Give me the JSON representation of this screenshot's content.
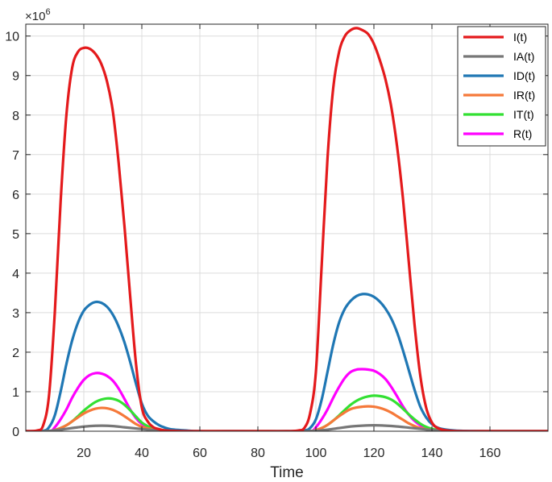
{
  "chart_data": {
    "type": "line",
    "title": "",
    "xlabel": "Time",
    "ylabel": "",
    "xlim": [
      0,
      180
    ],
    "ylim": [
      0,
      10.3
    ],
    "y_multiplier": 1000000,
    "y_multiplier_label": "×10",
    "y_multiplier_exponent": "6",
    "xticks": [
      20,
      40,
      60,
      80,
      100,
      120,
      140,
      160
    ],
    "yticks": [
      0,
      1,
      2,
      3,
      4,
      5,
      6,
      7,
      8,
      9,
      10
    ],
    "grid": true,
    "legend_position": "top-right",
    "series": [
      {
        "name": "I(t)",
        "color": "#e41a1c",
        "x": [
          0,
          4,
          6,
          8,
          10,
          12,
          14,
          16,
          18,
          20,
          22,
          24,
          26,
          28,
          30,
          32,
          34,
          36,
          38,
          40,
          42,
          44,
          46,
          48,
          50,
          55,
          60,
          70,
          80,
          90,
          94,
          96,
          98,
          100,
          102,
          104,
          106,
          108,
          110,
          112,
          114,
          116,
          118,
          120,
          122,
          124,
          126,
          128,
          130,
          132,
          134,
          136,
          138,
          140,
          142,
          145,
          150,
          160,
          170,
          180
        ],
        "y": [
          0,
          0.02,
          0.15,
          0.9,
          3.0,
          5.8,
          8.0,
          9.2,
          9.6,
          9.7,
          9.68,
          9.55,
          9.3,
          8.85,
          8.1,
          6.8,
          5.2,
          3.4,
          1.7,
          0.6,
          0.25,
          0.1,
          0.05,
          0.02,
          0.01,
          0,
          0,
          0,
          0,
          0,
          0.02,
          0.08,
          0.45,
          1.5,
          4.2,
          6.9,
          8.7,
          9.6,
          10.0,
          10.15,
          10.2,
          10.15,
          10.05,
          9.8,
          9.4,
          8.9,
          8.2,
          7.2,
          5.9,
          4.3,
          2.7,
          1.4,
          0.6,
          0.22,
          0.08,
          0.02,
          0,
          0,
          0,
          0
        ]
      },
      {
        "name": "IA(t)",
        "color": "#777777",
        "x": [
          0,
          6,
          10,
          14,
          18,
          22,
          26,
          30,
          34,
          38,
          42,
          46,
          50,
          55,
          60,
          90,
          96,
          100,
          104,
          108,
          112,
          116,
          120,
          124,
          128,
          132,
          136,
          140,
          144,
          148,
          155,
          180
        ],
        "y": [
          0,
          0,
          0.02,
          0.06,
          0.1,
          0.13,
          0.14,
          0.13,
          0.1,
          0.07,
          0.04,
          0.02,
          0.01,
          0,
          0,
          0,
          0,
          0.01,
          0.04,
          0.08,
          0.12,
          0.14,
          0.15,
          0.14,
          0.12,
          0.09,
          0.06,
          0.03,
          0.01,
          0,
          0,
          0
        ]
      },
      {
        "name": "ID(t)",
        "color": "#1f77b4",
        "x": [
          0,
          6,
          8,
          10,
          12,
          14,
          16,
          18,
          20,
          22,
          24,
          26,
          28,
          30,
          32,
          34,
          36,
          38,
          40,
          42,
          44,
          46,
          48,
          50,
          55,
          60,
          70,
          90,
          96,
          98,
          100,
          102,
          104,
          106,
          108,
          110,
          112,
          114,
          116,
          118,
          120,
          122,
          124,
          126,
          128,
          130,
          132,
          134,
          136,
          138,
          140,
          142,
          145,
          150,
          160,
          180
        ],
        "y": [
          0,
          0.01,
          0.1,
          0.4,
          1.0,
          1.7,
          2.3,
          2.75,
          3.05,
          3.2,
          3.27,
          3.25,
          3.15,
          2.95,
          2.65,
          2.25,
          1.75,
          1.2,
          0.7,
          0.4,
          0.25,
          0.15,
          0.09,
          0.05,
          0.02,
          0,
          0,
          0,
          0.02,
          0.08,
          0.3,
          0.8,
          1.5,
          2.2,
          2.75,
          3.1,
          3.3,
          3.42,
          3.47,
          3.46,
          3.4,
          3.28,
          3.1,
          2.85,
          2.5,
          2.05,
          1.55,
          1.05,
          0.62,
          0.35,
          0.18,
          0.09,
          0.04,
          0.01,
          0,
          0
        ]
      },
      {
        "name": "IR(t)",
        "color": "#f5793a",
        "x": [
          0,
          8,
          10,
          12,
          14,
          16,
          18,
          20,
          22,
          24,
          26,
          28,
          30,
          32,
          34,
          36,
          38,
          40,
          42,
          44,
          46,
          48,
          50,
          55,
          60,
          90,
          98,
          100,
          102,
          104,
          106,
          108,
          110,
          112,
          114,
          116,
          118,
          120,
          122,
          124,
          126,
          128,
          130,
          132,
          134,
          136,
          138,
          140,
          142,
          145,
          150,
          155,
          180
        ],
        "y": [
          0,
          0,
          0.03,
          0.08,
          0.15,
          0.25,
          0.35,
          0.45,
          0.52,
          0.57,
          0.59,
          0.58,
          0.54,
          0.47,
          0.38,
          0.28,
          0.18,
          0.11,
          0.07,
          0.04,
          0.02,
          0.01,
          0,
          0,
          0,
          0,
          0,
          0.03,
          0.08,
          0.16,
          0.27,
          0.38,
          0.48,
          0.56,
          0.6,
          0.62,
          0.63,
          0.62,
          0.59,
          0.54,
          0.47,
          0.38,
          0.29,
          0.2,
          0.13,
          0.08,
          0.05,
          0.03,
          0.015,
          0.01,
          0,
          0,
          0
        ]
      },
      {
        "name": "IT(t)",
        "color": "#33e033",
        "x": [
          0,
          8,
          10,
          12,
          14,
          16,
          18,
          20,
          22,
          24,
          26,
          28,
          30,
          32,
          34,
          36,
          38,
          40,
          42,
          44,
          46,
          48,
          50,
          55,
          60,
          90,
          98,
          100,
          102,
          104,
          106,
          108,
          110,
          112,
          114,
          116,
          118,
          120,
          122,
          124,
          126,
          128,
          130,
          132,
          134,
          136,
          138,
          140,
          142,
          145,
          150,
          155,
          180
        ],
        "y": [
          0,
          0,
          0.03,
          0.08,
          0.15,
          0.25,
          0.38,
          0.52,
          0.64,
          0.74,
          0.8,
          0.83,
          0.82,
          0.77,
          0.67,
          0.53,
          0.37,
          0.22,
          0.13,
          0.07,
          0.04,
          0.02,
          0.01,
          0,
          0,
          0,
          0,
          0.03,
          0.08,
          0.16,
          0.27,
          0.4,
          0.54,
          0.67,
          0.77,
          0.84,
          0.88,
          0.9,
          0.89,
          0.86,
          0.8,
          0.7,
          0.57,
          0.43,
          0.3,
          0.19,
          0.11,
          0.06,
          0.03,
          0.015,
          0,
          0,
          0
        ]
      },
      {
        "name": "R(t)",
        "color": "#ff00ff",
        "x": [
          0,
          8,
          10,
          12,
          14,
          16,
          18,
          20,
          22,
          24,
          26,
          28,
          30,
          32,
          34,
          36,
          38,
          40,
          42,
          44,
          46,
          48,
          50,
          55,
          60,
          90,
          98,
          100,
          102,
          104,
          106,
          108,
          110,
          112,
          114,
          116,
          118,
          120,
          122,
          124,
          126,
          128,
          130,
          132,
          134,
          136,
          138,
          140,
          142,
          145,
          150,
          155,
          180
        ],
        "y": [
          0,
          0,
          0.1,
          0.3,
          0.55,
          0.85,
          1.1,
          1.3,
          1.42,
          1.47,
          1.46,
          1.4,
          1.28,
          1.08,
          0.82,
          0.55,
          0.33,
          0.18,
          0.1,
          0.05,
          0.03,
          0.015,
          0.01,
          0,
          0,
          0,
          0,
          0.1,
          0.3,
          0.55,
          0.85,
          1.12,
          1.35,
          1.5,
          1.56,
          1.57,
          1.56,
          1.53,
          1.45,
          1.32,
          1.12,
          0.88,
          0.63,
          0.42,
          0.26,
          0.15,
          0.08,
          0.04,
          0.02,
          0.01,
          0,
          0,
          0
        ]
      }
    ]
  }
}
